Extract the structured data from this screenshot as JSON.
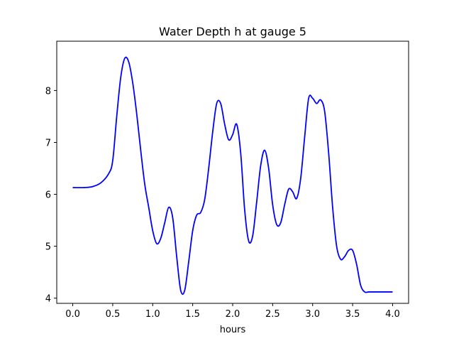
{
  "chart_data": {
    "type": "line",
    "title": "Water Depth h at gauge 5",
    "xlabel": "hours",
    "ylabel": "",
    "xlim": [
      -0.2,
      4.2
    ],
    "ylim": [
      3.9,
      8.95
    ],
    "xticks": [
      0.0,
      0.5,
      1.0,
      1.5,
      2.0,
      2.5,
      3.0,
      3.5,
      4.0
    ],
    "xtick_labels": [
      "0.0",
      "0.5",
      "1.0",
      "1.5",
      "2.0",
      "2.5",
      "3.0",
      "3.5",
      "4.0"
    ],
    "yticks": [
      4,
      5,
      6,
      7,
      8
    ],
    "ytick_labels": [
      "4",
      "5",
      "6",
      "7",
      "8"
    ],
    "grid": false,
    "series": [
      {
        "color": "#0000ff",
        "x": [
          0.0,
          0.15,
          0.25,
          0.35,
          0.45,
          0.5,
          0.55,
          0.6,
          0.65,
          0.7,
          0.75,
          0.8,
          0.85,
          0.9,
          0.95,
          1.0,
          1.05,
          1.1,
          1.15,
          1.2,
          1.25,
          1.3,
          1.35,
          1.4,
          1.45,
          1.5,
          1.55,
          1.6,
          1.65,
          1.7,
          1.75,
          1.8,
          1.85,
          1.9,
          1.95,
          2.0,
          2.05,
          2.1,
          2.15,
          2.2,
          2.25,
          2.3,
          2.35,
          2.4,
          2.45,
          2.5,
          2.55,
          2.6,
          2.65,
          2.7,
          2.75,
          2.8,
          2.85,
          2.9,
          2.95,
          3.0,
          3.05,
          3.1,
          3.15,
          3.2,
          3.25,
          3.3,
          3.35,
          3.4,
          3.45,
          3.5,
          3.55,
          3.6,
          3.65,
          3.7,
          3.75,
          3.8,
          3.85,
          3.9,
          3.95,
          4.0
        ],
        "y": [
          6.13,
          6.13,
          6.15,
          6.22,
          6.4,
          6.65,
          7.5,
          8.25,
          8.62,
          8.55,
          8.15,
          7.55,
          6.85,
          6.2,
          5.75,
          5.3,
          5.05,
          5.15,
          5.45,
          5.75,
          5.55,
          4.8,
          4.15,
          4.15,
          4.7,
          5.3,
          5.6,
          5.65,
          5.9,
          6.5,
          7.2,
          7.75,
          7.75,
          7.35,
          7.05,
          7.15,
          7.35,
          6.8,
          5.7,
          5.1,
          5.2,
          5.85,
          6.55,
          6.85,
          6.5,
          5.8,
          5.42,
          5.45,
          5.8,
          6.1,
          6.05,
          5.92,
          6.3,
          7.1,
          7.85,
          7.85,
          7.75,
          7.82,
          7.6,
          6.8,
          5.75,
          5.0,
          4.75,
          4.8,
          4.92,
          4.92,
          4.65,
          4.25,
          4.12,
          4.12,
          4.12,
          4.12,
          4.12,
          4.12,
          4.12,
          4.12
        ]
      }
    ]
  }
}
